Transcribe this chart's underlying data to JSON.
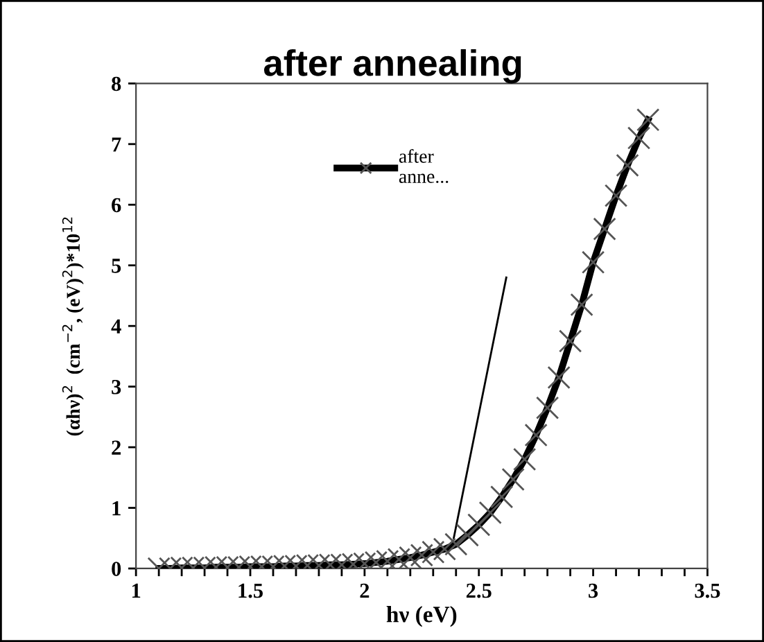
{
  "chart_data": {
    "type": "line",
    "title": "after annealing",
    "xlabel": "hν (eV)",
    "ylabel": "(αhν)$^{2}$  (cm$^{−2}$, (eV)$^{2}$)*10$^{12}$",
    "xlim": [
      1,
      3.5
    ],
    "ylim": [
      0,
      8
    ],
    "xticks": [
      1,
      {
        "value": 1.1,
        "label": null
      },
      {
        "value": 1.2,
        "label": null
      },
      {
        "value": 1.3,
        "label": null
      },
      {
        "value": 1.4,
        "label": null
      },
      1.5,
      {
        "value": 1.6,
        "label": null
      },
      {
        "value": 1.7,
        "label": null
      },
      {
        "value": 1.8,
        "label": null
      },
      {
        "value": 1.9,
        "label": null
      },
      2,
      {
        "value": 2.1,
        "label": null
      },
      {
        "value": 2.2,
        "label": null
      },
      {
        "value": 2.3,
        "label": null
      },
      {
        "value": 2.4,
        "label": null
      },
      2.5,
      {
        "value": 2.6,
        "label": null
      },
      {
        "value": 2.7,
        "label": null
      },
      {
        "value": 2.8,
        "label": null
      },
      {
        "value": 2.9,
        "label": null
      },
      3,
      {
        "value": 3.1,
        "label": null
      },
      {
        "value": 3.2,
        "label": null
      },
      {
        "value": 3.3,
        "label": null
      },
      {
        "value": 3.4,
        "label": null
      },
      3.5
    ],
    "yticks": [
      0,
      1,
      2,
      3,
      4,
      5,
      6,
      7,
      8
    ],
    "grid": false,
    "legend": "top",
    "series": [
      {
        "name": "after\nanne...",
        "color": "#000000",
        "marker": "cross",
        "line_style": "solid",
        "x": [
          1.1,
          1.15,
          1.2,
          1.25,
          1.3,
          1.35,
          1.4,
          1.45,
          1.5,
          1.55,
          1.6,
          1.65,
          1.7,
          1.75,
          1.8,
          1.85,
          1.9,
          1.95,
          2.0,
          2.05,
          2.1,
          2.15,
          2.2,
          2.25,
          2.3,
          2.35,
          2.4,
          2.45,
          2.5,
          2.55,
          2.6,
          2.65,
          2.7,
          2.75,
          2.8,
          2.85,
          2.9,
          2.95,
          3.0,
          3.05,
          3.1,
          3.15,
          3.2,
          3.24
        ],
        "values": [
          0.0,
          0.0,
          0.01,
          0.01,
          0.01,
          0.02,
          0.02,
          0.02,
          0.03,
          0.03,
          0.03,
          0.04,
          0.04,
          0.05,
          0.05,
          0.06,
          0.06,
          0.07,
          0.08,
          0.1,
          0.12,
          0.15,
          0.18,
          0.22,
          0.27,
          0.32,
          0.4,
          0.55,
          0.72,
          0.92,
          1.18,
          1.47,
          1.8,
          2.2,
          2.65,
          3.15,
          3.75,
          4.35,
          5.05,
          5.6,
          6.15,
          6.65,
          7.1,
          7.4
        ]
      },
      {
        "color": "#000000",
        "marker": "none",
        "line_style": "solid",
        "x": [
          2.39,
          2.62
        ],
        "values": [
          0.5,
          4.8
        ]
      }
    ]
  }
}
